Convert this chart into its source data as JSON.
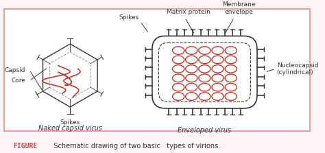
{
  "bg_color": "#fdf5f5",
  "border_color": "#e8a0a0",
  "dark_red": "#c0392b",
  "line_color": "#333333",
  "figure_color": "#d44040",
  "caption_figure": "FIGURE",
  "caption_text": "   Schematic drawing of two basic   types of virions.",
  "label_naked": "Naked capsid virus",
  "label_enveloped": "Enveloped virus",
  "label_spikes_left": "Spikes",
  "label_capsid": "Capsid",
  "label_core": "Core",
  "label_spikes_right": "Spikes",
  "label_matrix": "Matrix protein",
  "label_membrane": "Membrane\nenvelope",
  "label_nucleocapsid": "Nucleocapsid\n(cylindrical)"
}
